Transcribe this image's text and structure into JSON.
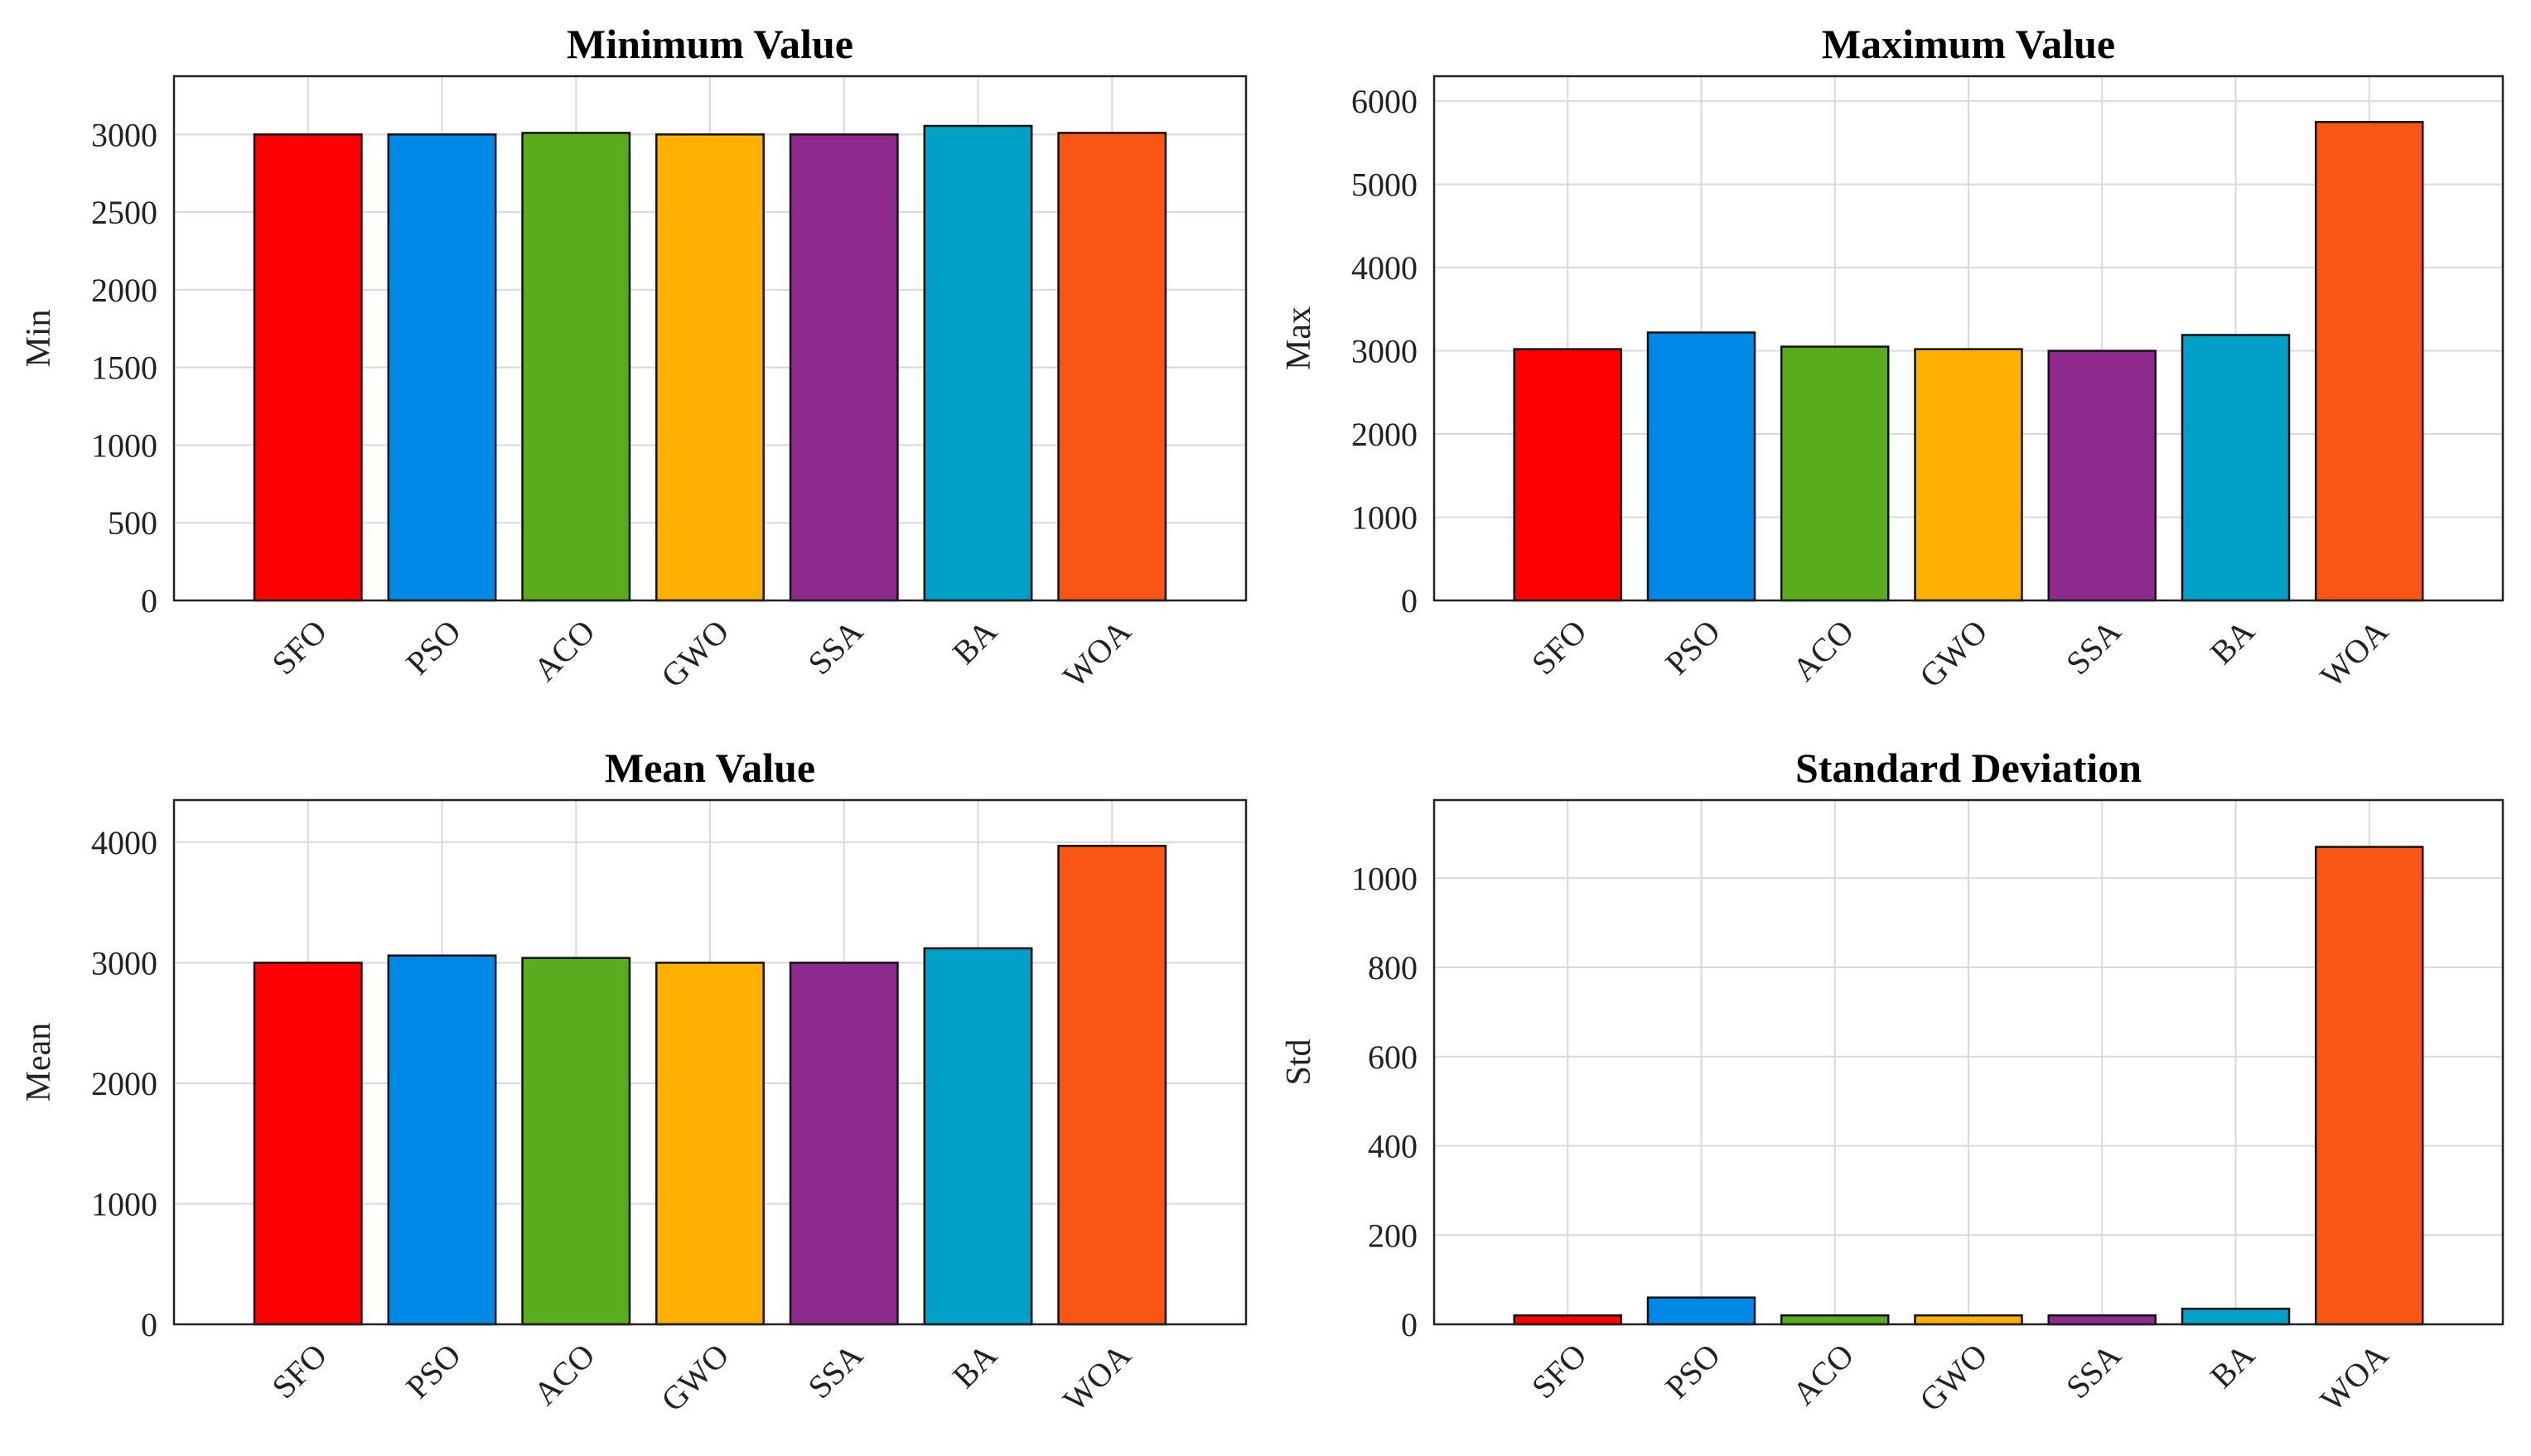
{
  "chart_data": [
    {
      "type": "bar",
      "title": "Minimum Value",
      "xlabel": "",
      "ylabel": "Min",
      "ylim": [
        0,
        3375
      ],
      "yticks": [
        0,
        500,
        1000,
        1500,
        2000,
        2500,
        3000
      ],
      "grid": true,
      "categories": [
        "SFO",
        "PSO",
        "ACO",
        "GWO",
        "SSA",
        "BA",
        "WOA"
      ],
      "values": [
        3000,
        3000,
        3010,
        3000,
        3000,
        3055,
        3010
      ],
      "colors": [
        "#ff0000",
        "#0088e6",
        "#5aac1e",
        "#ffb000",
        "#8e2a8e",
        "#00a0c8",
        "#f95515"
      ]
    },
    {
      "type": "bar",
      "title": "Maximum Value",
      "xlabel": "",
      "ylabel": "Max",
      "ylim": [
        0,
        6300
      ],
      "yticks": [
        0,
        1000,
        2000,
        3000,
        4000,
        5000,
        6000
      ],
      "grid": true,
      "categories": [
        "SFO",
        "PSO",
        "ACO",
        "GWO",
        "SSA",
        "BA",
        "WOA"
      ],
      "values": [
        3020,
        3220,
        3050,
        3020,
        3000,
        3190,
        5750
      ],
      "colors": [
        "#ff0000",
        "#0088e6",
        "#5aac1e",
        "#ffb000",
        "#8e2a8e",
        "#00a0c8",
        "#f95515"
      ]
    },
    {
      "type": "bar",
      "title": "Mean Value",
      "xlabel": "",
      "ylabel": "Mean",
      "ylim": [
        0,
        4350
      ],
      "yticks": [
        0,
        1000,
        2000,
        3000,
        4000
      ],
      "grid": true,
      "categories": [
        "SFO",
        "PSO",
        "ACO",
        "GWO",
        "SSA",
        "BA",
        "WOA"
      ],
      "values": [
        3000,
        3060,
        3040,
        3000,
        3000,
        3120,
        3970
      ],
      "colors": [
        "#ff0000",
        "#0088e6",
        "#5aac1e",
        "#ffb000",
        "#8e2a8e",
        "#00a0c8",
        "#f95515"
      ]
    },
    {
      "type": "bar",
      "title": "Standard Deviation",
      "xlabel": "",
      "ylabel": "Std",
      "ylim": [
        0,
        1175
      ],
      "yticks": [
        0,
        200,
        400,
        600,
        800,
        1000
      ],
      "grid": true,
      "categories": [
        "SFO",
        "PSO",
        "ACO",
        "GWO",
        "SSA",
        "BA",
        "WOA"
      ],
      "values": [
        20,
        60,
        20,
        20,
        20,
        35,
        1070
      ],
      "colors": [
        "#ff0000",
        "#0088e6",
        "#5aac1e",
        "#ffb000",
        "#8e2a8e",
        "#00a0c8",
        "#f95515"
      ]
    }
  ]
}
